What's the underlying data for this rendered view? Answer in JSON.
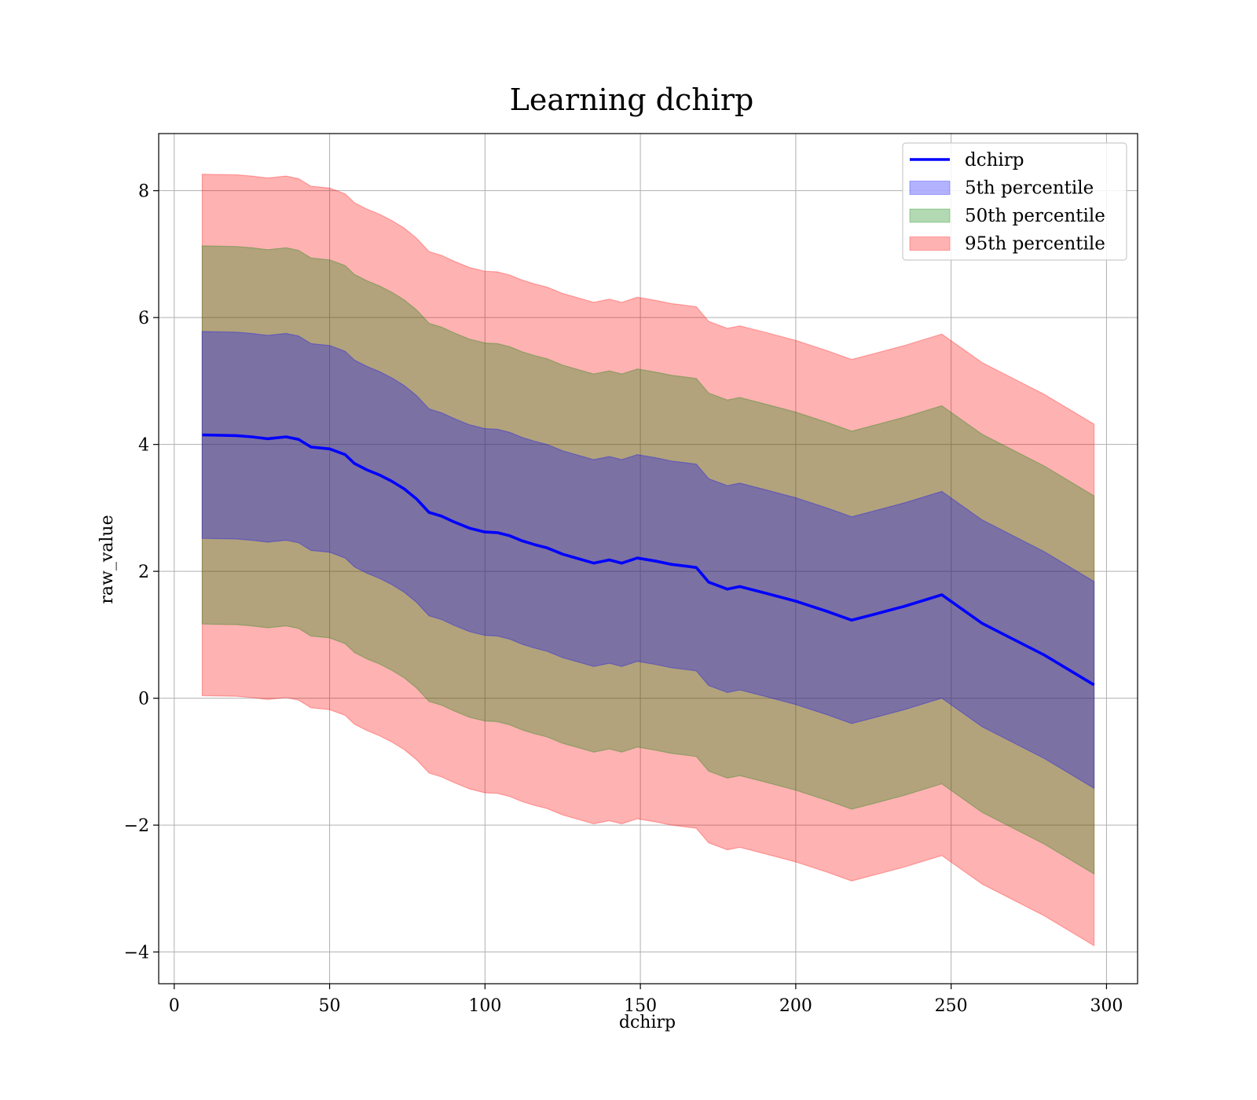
{
  "chart_data": {
    "type": "line",
    "title": "Learning dchirp",
    "xlabel": "dchirp",
    "ylabel": "raw_value",
    "xlim": [
      -5,
      310
    ],
    "ylim": [
      -4.5,
      8.9
    ],
    "xticks": [
      0,
      50,
      100,
      150,
      200,
      250,
      300
    ],
    "yticks": [
      -4,
      -2,
      0,
      2,
      4,
      6,
      8
    ],
    "xtick_labels": [
      "0",
      "50",
      "100",
      "150",
      "200",
      "250",
      "300"
    ],
    "ytick_labels": [
      "−4",
      "−2",
      "0",
      "2",
      "4",
      "6",
      "8"
    ],
    "grid": true,
    "legend_position": "top-right",
    "legend": [
      "dchirp",
      "5th percentile",
      "50th percentile",
      "95th percentile"
    ],
    "x": [
      9,
      20,
      25,
      30,
      36,
      40,
      44,
      50,
      55,
      58,
      62,
      66,
      70,
      74,
      78,
      82,
      86,
      90,
      95,
      100,
      104,
      108,
      112,
      116,
      120,
      125,
      130,
      135,
      140,
      144,
      149,
      155,
      160,
      165,
      168,
      172,
      178,
      182,
      190,
      200,
      210,
      218,
      225,
      235,
      247,
      260,
      280,
      296
    ],
    "series": [
      {
        "name": "dchirp",
        "color": "#0000ff",
        "values": [
          4.15,
          4.14,
          4.12,
          4.09,
          4.12,
          4.08,
          3.96,
          3.93,
          3.84,
          3.7,
          3.6,
          3.52,
          3.42,
          3.3,
          3.14,
          2.93,
          2.87,
          2.78,
          2.68,
          2.62,
          2.61,
          2.56,
          2.48,
          2.42,
          2.37,
          2.27,
          2.2,
          2.13,
          2.18,
          2.13,
          2.21,
          2.16,
          2.11,
          2.08,
          2.06,
          1.83,
          1.72,
          1.76,
          1.66,
          1.53,
          1.37,
          1.23,
          1.32,
          1.45,
          1.63,
          1.18,
          0.68,
          0.21
        ]
      }
    ],
    "bands": [
      {
        "name": "5th percentile",
        "color": "#0000ff",
        "half_width": 1.63
      },
      {
        "name": "50th percentile",
        "color": "#008000",
        "half_width": 2.98
      },
      {
        "name": "95th percentile",
        "color": "#ff0000",
        "half_width": 4.11
      }
    ]
  }
}
